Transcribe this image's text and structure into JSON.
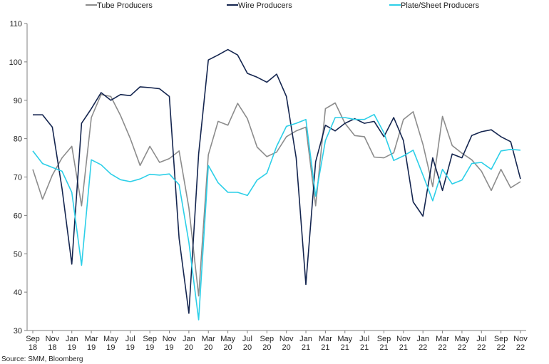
{
  "chart_data": {
    "type": "line",
    "title": "",
    "xlabel": "",
    "ylabel": "",
    "ylim": [
      30,
      110
    ],
    "yticks": [
      30,
      40,
      50,
      60,
      70,
      80,
      90,
      100,
      110
    ],
    "grid": false,
    "legend_position": "top",
    "x_tick_labels": [
      [
        "Sep",
        "18"
      ],
      [
        "Nov",
        "18"
      ],
      [
        "Jan",
        "19"
      ],
      [
        "Mar",
        "19"
      ],
      [
        "May",
        "19"
      ],
      [
        "Jul",
        "19"
      ],
      [
        "Sep",
        "19"
      ],
      [
        "Nov",
        "19"
      ],
      [
        "Jan",
        "20"
      ],
      [
        "Mar",
        "20"
      ],
      [
        "May",
        "20"
      ],
      [
        "Jul",
        "20"
      ],
      [
        "Sep",
        "20"
      ],
      [
        "Nov",
        "20"
      ],
      [
        "Jan",
        "21"
      ],
      [
        "Mar",
        "21"
      ],
      [
        "May",
        "21"
      ],
      [
        "Jul",
        "21"
      ],
      [
        "Sep",
        "21"
      ],
      [
        "Nov",
        "21"
      ],
      [
        "Jan",
        "22"
      ],
      [
        "Mar",
        "22"
      ],
      [
        "May",
        "22"
      ],
      [
        "Jul",
        "22"
      ],
      [
        "Sep",
        "22"
      ],
      [
        "Nov",
        "22"
      ]
    ],
    "x": [
      "Sep 18",
      "Oct 18",
      "Nov 18",
      "Dec 18",
      "Jan 19",
      "Feb 19",
      "Mar 19",
      "Apr 19",
      "May 19",
      "Jun 19",
      "Jul 19",
      "Aug 19",
      "Sep 19",
      "Oct 19",
      "Nov 19",
      "Dec 19",
      "Jan 20",
      "Feb 20",
      "Mar 20",
      "Apr 20",
      "May 20",
      "Jun 20",
      "Jul 20",
      "Aug 20",
      "Sep 20",
      "Oct 20",
      "Nov 20",
      "Dec 20",
      "Jan 21",
      "Feb 21",
      "Mar 21",
      "Apr 21",
      "May 21",
      "Jun 21",
      "Jul 21",
      "Aug 21",
      "Sep 21",
      "Oct 21",
      "Nov 21",
      "Dec 21",
      "Jan 22",
      "Feb 22",
      "Mar 22",
      "Apr 22",
      "May 22",
      "Jun 22",
      "Jul 22",
      "Aug 22",
      "Sep 22",
      "Oct 22",
      "Nov 22"
    ],
    "series": [
      {
        "name": "Tube Producers",
        "color": "#8c8c8c",
        "values": [
          72,
          64.2,
          70.5,
          75,
          78,
          62.5,
          85.5,
          91.5,
          91,
          86,
          80,
          73,
          78,
          73.8,
          74.8,
          76.8,
          62,
          39,
          75.8,
          84.5,
          83.5,
          89.2,
          85.2,
          77.8,
          75.3,
          76.5,
          80.5,
          82,
          83,
          62.5,
          87.8,
          89.3,
          84,
          80.8,
          80.5,
          75.2,
          75,
          76.3,
          85,
          87,
          78.5,
          67.5,
          85.8,
          78.2,
          76.2,
          74.5,
          71.5,
          66.5,
          72,
          67.2,
          68.8
        ]
      },
      {
        "name": "Wire Producers",
        "color": "#14254f",
        "values": [
          86.2,
          86.2,
          83,
          67,
          47.3,
          84,
          87.8,
          92,
          90,
          91.5,
          91.2,
          93.5,
          93.3,
          93,
          91,
          54,
          34.5,
          76,
          100.5,
          101.8,
          103.2,
          101.8,
          97,
          96,
          94.7,
          96.8,
          91,
          75,
          42,
          74,
          83.5,
          82,
          84,
          85.2,
          84,
          84.5,
          80.5,
          85.5,
          79.5,
          63.5,
          59.8,
          75,
          66.5,
          76,
          75,
          80.8,
          81.8,
          82.3,
          80.5,
          79.2,
          69.5
        ]
      },
      {
        "name": "Plate/Sheet Producers",
        "color": "#2ccfe8",
        "values": [
          76.8,
          73.5,
          72.5,
          71.5,
          66,
          47,
          74.5,
          73.2,
          70.8,
          69.3,
          68.8,
          69.5,
          70.7,
          70.5,
          70.8,
          68,
          53,
          32.8,
          73,
          68.5,
          66,
          66,
          65.2,
          69.2,
          71,
          78,
          83.2,
          84,
          85,
          65,
          79.5,
          85.5,
          85.5,
          85,
          85,
          86.3,
          81.5,
          74.3,
          75.5,
          77,
          70.5,
          63.8,
          72,
          68.2,
          69.2,
          73.5,
          73.8,
          72,
          76.8,
          77.2,
          77
        ]
      }
    ]
  },
  "source": "Source: SMM, Bloomberg"
}
